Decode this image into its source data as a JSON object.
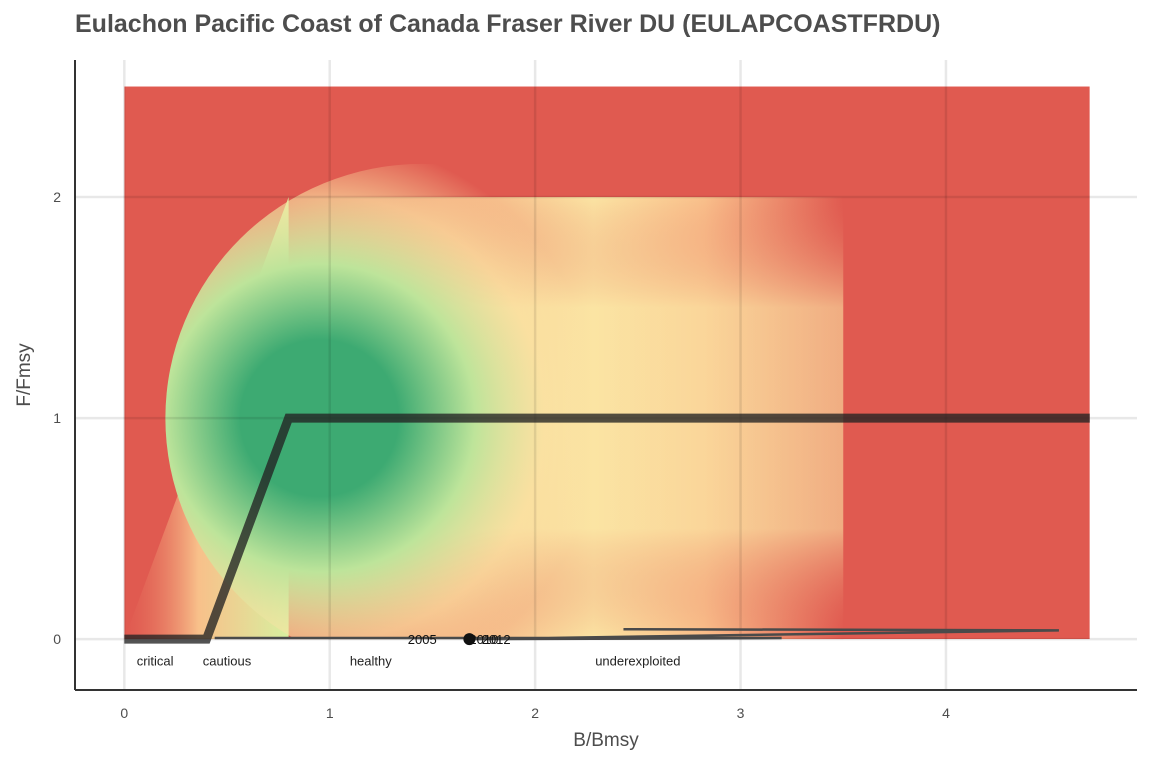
{
  "chart_data": {
    "type": "line",
    "title": "Eulachon Pacific Coast of Canada Fraser River DU (EULAPCOASTFRDU)",
    "xlabel": "B/Bmsy",
    "ylabel": "F/Fmsy",
    "xlim": [
      -0.24,
      4.93
    ],
    "ylim": [
      -0.23,
      2.62
    ],
    "x_ticks": [
      0,
      1,
      2,
      3,
      4
    ],
    "y_ticks": [
      0,
      1,
      2
    ],
    "grid": true,
    "background_zones": {
      "colors": {
        "critical": "#e05a50",
        "cautious": "#fbe4a3",
        "healthy": "#3daa72",
        "underexploited": "#e05a50"
      },
      "labels": [
        {
          "text": "critical",
          "x": 0.15,
          "y": -0.1
        },
        {
          "text": "cautious",
          "x": 0.5,
          "y": -0.1
        },
        {
          "text": "healthy",
          "x": 1.2,
          "y": -0.1
        },
        {
          "text": "underexploited",
          "x": 2.5,
          "y": -0.1
        }
      ]
    },
    "harvest_control_rule": {
      "x": [
        0,
        0.4,
        0.8,
        4.7
      ],
      "y": [
        0,
        0,
        1,
        1
      ]
    },
    "series": [
      {
        "x": [
          0.44,
          3.2,
          1.68,
          4.55,
          2.43
        ],
        "y": [
          0.005,
          0.005,
          0.0,
          0.04,
          0.045
        ]
      }
    ],
    "points": [
      {
        "label": "2005",
        "x": 1.38,
        "y": 0.0
      },
      {
        "label": "2010",
        "x": 1.68,
        "y": 0.0
      },
      {
        "label": "2012",
        "x": 1.74,
        "y": 0.0
      }
    ],
    "current_point": {
      "x": 1.68,
      "y": 0.0
    }
  }
}
